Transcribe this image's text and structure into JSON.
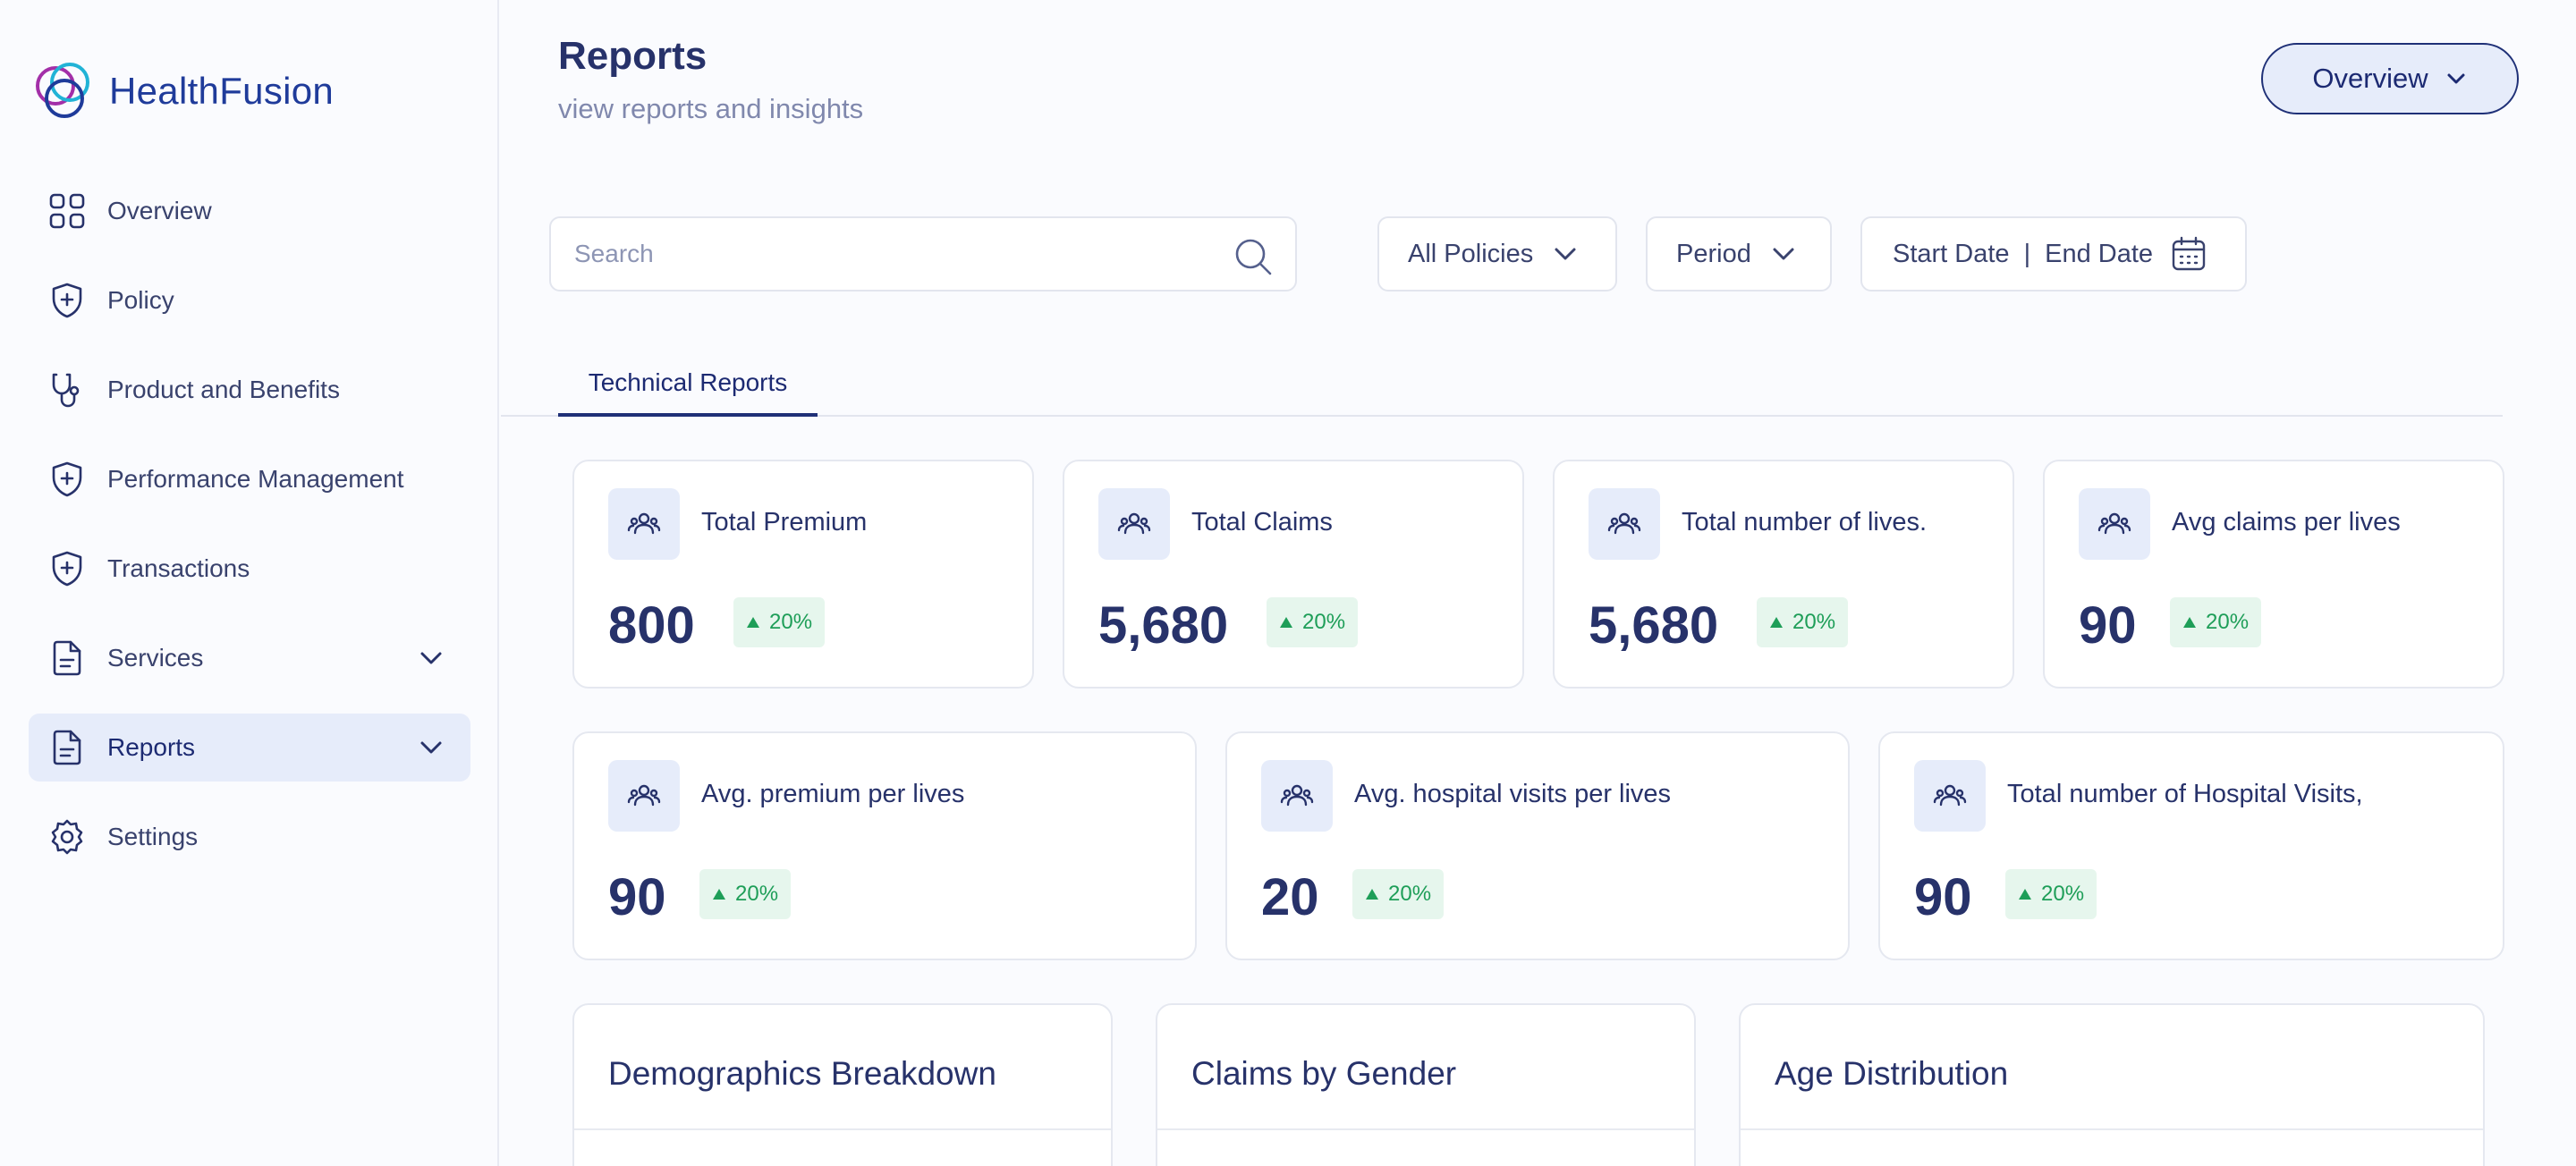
{
  "app": {
    "name": "HealthFusion"
  },
  "sidebar": {
    "items": [
      {
        "label": "Overview",
        "icon": "grid-icon"
      },
      {
        "label": "Policy",
        "icon": "shield-plus-icon"
      },
      {
        "label": "Product and Benefits",
        "icon": "stethoscope-icon"
      },
      {
        "label": "Performance Management",
        "icon": "shield-plus-icon"
      },
      {
        "label": "Transactions",
        "icon": "shield-plus-icon"
      },
      {
        "label": "Services",
        "icon": "document-icon",
        "expandable": true
      },
      {
        "label": "Reports",
        "icon": "document-icon",
        "expandable": true,
        "active": true
      },
      {
        "label": "Settings",
        "icon": "gear-icon"
      }
    ]
  },
  "header": {
    "title": "Reports",
    "subtitle": "view reports and insights",
    "view_selector": "Overview"
  },
  "filters": {
    "search_placeholder": "Search",
    "policies": "All Policies",
    "period": "Period",
    "start_date": "Start Date",
    "separator": "|",
    "end_date": "End Date"
  },
  "tabs": [
    {
      "label": "Technical Reports",
      "active": true
    }
  ],
  "stats": [
    {
      "label": "Total Premium",
      "value": "800",
      "change": "20%"
    },
    {
      "label": "Total Claims",
      "value": "5,680",
      "change": "20%"
    },
    {
      "label": "Total number of lives.",
      "value": "5,680",
      "change": "20%"
    },
    {
      "label": "Avg claims per lives",
      "value": "90",
      "change": "20%"
    },
    {
      "label": "Avg. premium per lives",
      "value": "90",
      "change": "20%"
    },
    {
      "label": "Avg. hospital visits per lives",
      "value": "20",
      "change": "20%"
    },
    {
      "label": "Total number  of Hospital Visits,",
      "value": "90",
      "change": "20%"
    }
  ],
  "panels": [
    {
      "title": "Demographics Breakdown"
    },
    {
      "title": "Claims by Gender"
    },
    {
      "title": "Age Distribution"
    }
  ],
  "colors": {
    "primary": "#27326a",
    "accent": "#1f3077",
    "active_bg": "#e6ecfa",
    "positive": "#1e9e58",
    "positive_bg": "#e6f6ed",
    "chart_blue": "#1766f2",
    "chart_orange": "#e5531b",
    "chart_peach": "#fde7e1"
  }
}
